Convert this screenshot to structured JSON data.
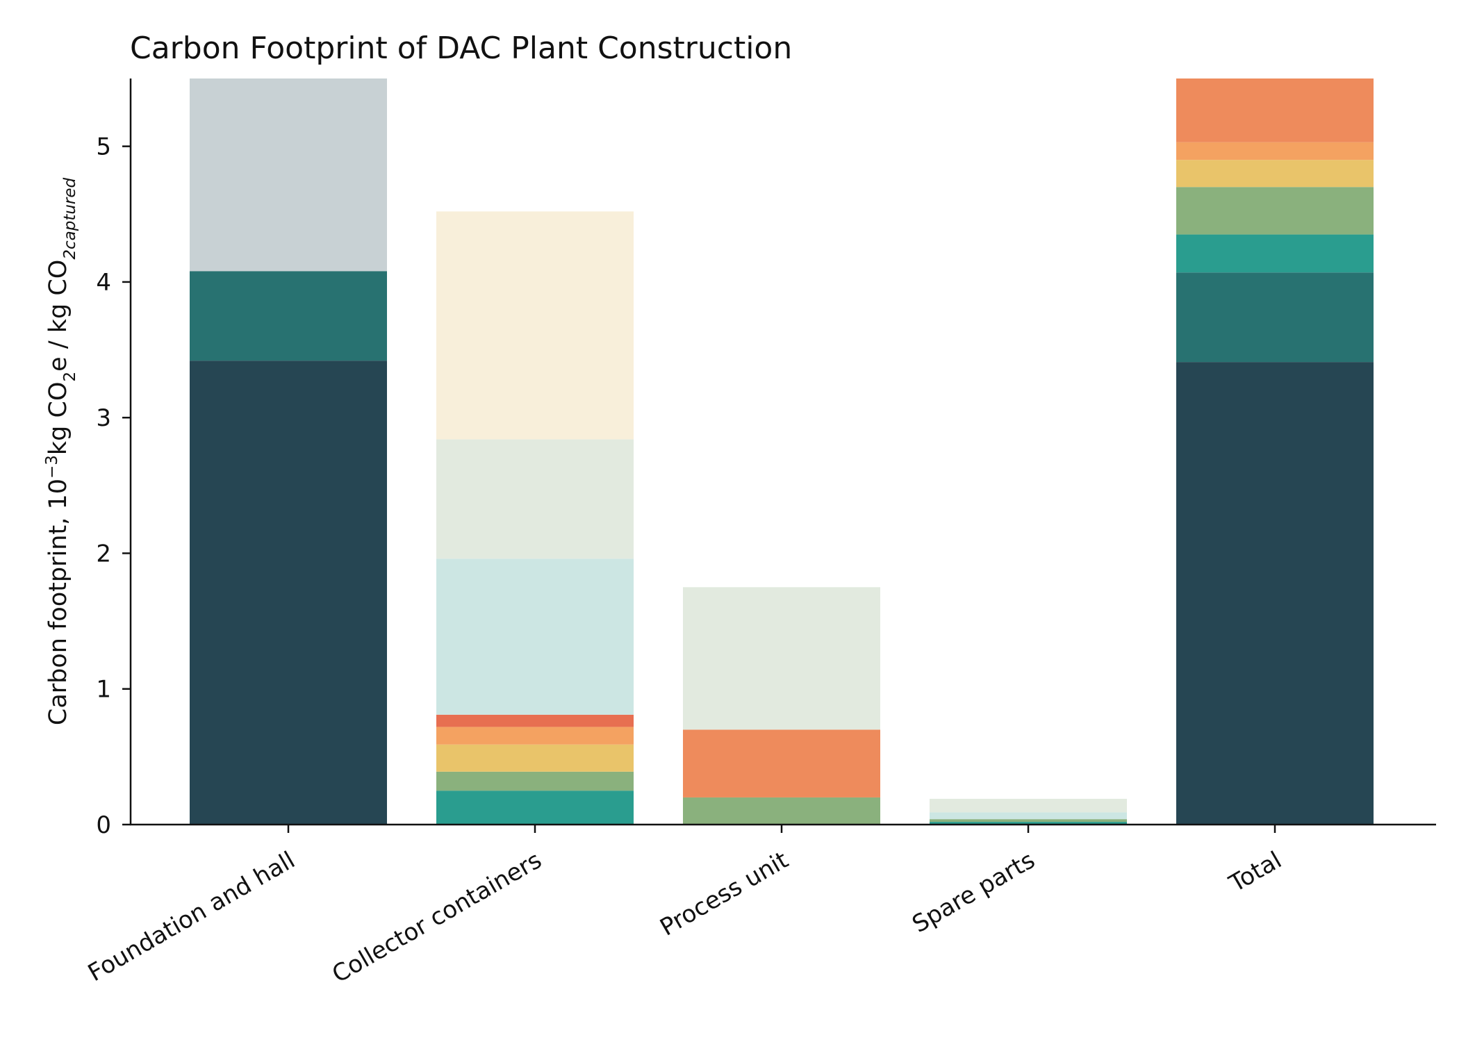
{
  "chart_data": {
    "type": "bar",
    "stacked": true,
    "title": "Carbon Footprint of DAC Plant Construction",
    "ylabel": {
      "prefix": "Carbon footprint, 10",
      "exp": "−3",
      "mid1": "kg CO",
      "sub1": "2",
      "mid2": "e / kg CO",
      "sub2": "2captured"
    },
    "ylim": [
      0,
      5.5
    ],
    "yticks": [
      "0",
      "1",
      "2",
      "3",
      "4",
      "5"
    ],
    "categories": [
      "Foundation and hall",
      "Collector containers",
      "Process unit",
      "Spare parts",
      "Total"
    ],
    "stacks": [
      [
        {
          "value": 3.42,
          "color": "#264653"
        },
        {
          "value": 0.66,
          "color": "#287271"
        },
        {
          "value": 1.42,
          "color": "#c8d1d4"
        }
      ],
      [
        {
          "value": 0.25,
          "color": "#2a9d8f"
        },
        {
          "value": 0.14,
          "color": "#8ab17d"
        },
        {
          "value": 0.2,
          "color": "#e9c46a"
        },
        {
          "value": 0.13,
          "color": "#f4a261"
        },
        {
          "value": 0.09,
          "color": "#e76f51"
        },
        {
          "value": 1.15,
          "color": "#cce6e3"
        },
        {
          "value": 0.88,
          "color": "#e2eadf"
        },
        {
          "value": 1.68,
          "color": "#f8efda"
        }
      ],
      [
        {
          "value": 0.2,
          "color": "#8ab17d"
        },
        {
          "value": 0.5,
          "color": "#ee8b5c"
        },
        {
          "value": 1.05,
          "color": "#e2eadf"
        }
      ],
      [
        {
          "value": 0.02,
          "color": "#2a9d8f"
        },
        {
          "value": 0.02,
          "color": "#8ab17d"
        },
        {
          "value": 0.05,
          "color": "#cce6e3"
        },
        {
          "value": 0.1,
          "color": "#e2eadf"
        }
      ],
      [
        {
          "value": 3.41,
          "color": "#264653"
        },
        {
          "value": 0.66,
          "color": "#287271"
        },
        {
          "value": 0.28,
          "color": "#2a9d8f"
        },
        {
          "value": 0.35,
          "color": "#8ab17d"
        },
        {
          "value": 0.2,
          "color": "#e9c46a"
        },
        {
          "value": 0.13,
          "color": "#f4a261"
        },
        {
          "value": 0.47,
          "color": "#ee8b5c"
        }
      ]
    ]
  }
}
